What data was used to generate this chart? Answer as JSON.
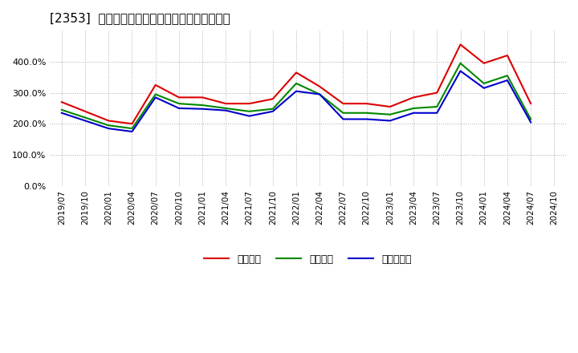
{
  "title": "[2353]  流動比率、当座比率、現預金比率の推移",
  "x_labels": [
    "2019/07",
    "2019/10",
    "2020/01",
    "2020/04",
    "2020/07",
    "2020/10",
    "2021/01",
    "2021/04",
    "2021/07",
    "2021/10",
    "2022/01",
    "2022/04",
    "2022/07",
    "2022/10",
    "2023/01",
    "2023/04",
    "2023/07",
    "2023/10",
    "2024/01",
    "2024/04",
    "2024/07",
    "2024/10"
  ],
  "ryudo": [
    270,
    240,
    210,
    200,
    325,
    285,
    285,
    265,
    265,
    280,
    365,
    320,
    265,
    265,
    255,
    285,
    300,
    455,
    395,
    420,
    265,
    null
  ],
  "toza": [
    245,
    220,
    195,
    185,
    295,
    265,
    260,
    250,
    240,
    248,
    330,
    295,
    235,
    235,
    230,
    250,
    255,
    395,
    330,
    355,
    215,
    null
  ],
  "genyo": [
    235,
    210,
    185,
    175,
    285,
    250,
    248,
    243,
    225,
    240,
    305,
    295,
    215,
    215,
    210,
    235,
    235,
    370,
    315,
    340,
    205,
    null
  ],
  "ryudo_color": "#dd0000",
  "toza_color": "#008800",
  "genyo_color": "#0000cc",
  "background_color": "#ffffff",
  "grid_color": "#aaaaaa",
  "ylim": [
    0,
    500
  ],
  "yticks": [
    0,
    100,
    200,
    300,
    400
  ],
  "legend_labels": [
    "流動比率",
    "当座比率",
    "現預金比率"
  ]
}
